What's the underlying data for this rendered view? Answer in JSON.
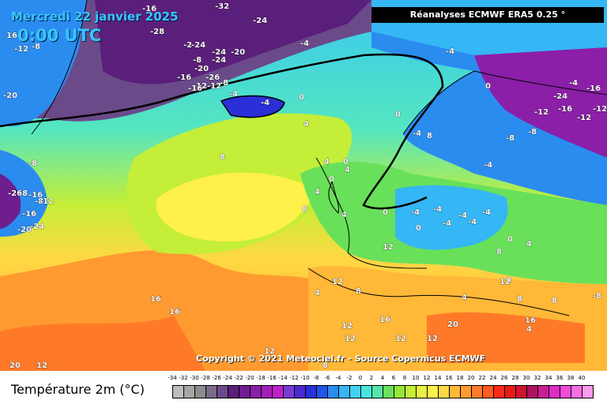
{
  "header": {
    "date_label": "Mercredi 22 janvier 2025",
    "time_label": "0:00 UTC"
  },
  "source_label": "Réanalyses ECMWF ERA5 0.25 °",
  "copyright": "Copyright © 2021 Meteociel.fr - Source Copernicus ECMWF",
  "legend": {
    "title": "Température 2m (°C)",
    "scale_values": [
      "-34",
      "-32",
      "-30",
      "-28",
      "-26",
      "-24",
      "-22",
      "-20",
      "-18",
      "-16",
      "-14",
      "-12",
      "-10",
      "-8",
      "-6",
      "-4",
      "-2",
      "0",
      "2",
      "4",
      "6",
      "8",
      "10",
      "12",
      "14",
      "16",
      "18",
      "20",
      "22",
      "24",
      "26",
      "28",
      "30",
      "32",
      "34",
      "36",
      "38",
      "40"
    ],
    "scale_colors": [
      "#bdbdbd",
      "#a6a6a6",
      "#8c8c8c",
      "#7a6a8c",
      "#6b4a8a",
      "#5a1f7a",
      "#6e1e8e",
      "#8b1fa8",
      "#a21fb8",
      "#c020c8",
      "#7a3ad6",
      "#4b2bd0",
      "#2a2fd8",
      "#1f55e6",
      "#2b8cf0",
      "#35b6f5",
      "#3ed3f2",
      "#46e6de",
      "#55e6a8",
      "#69e05a",
      "#94e63a",
      "#c4ee38",
      "#e6f040",
      "#fff04a",
      "#ffd844",
      "#ffb838",
      "#ff9a30",
      "#ff7a28",
      "#ff5a20",
      "#ff2a1a",
      "#e81a1a",
      "#cc1430",
      "#b01060",
      "#c81e96",
      "#e12cc2",
      "#f14ad8",
      "#f86ee2",
      "#fc9aec"
    ]
  },
  "isotherm_labels": [
    "-16",
    "-32",
    "-24",
    "-28",
    "16",
    "-12",
    "-8",
    "-2",
    "-24",
    "-4",
    "-24",
    "-20",
    "-8",
    "-24",
    "-20",
    "-16",
    "-26",
    "-12",
    "-8",
    "-16",
    "-12",
    "-4",
    "-4",
    "0",
    "-4",
    "0",
    "-4",
    "8",
    "-8",
    "-4",
    "-16",
    "-24",
    "-12",
    "-16",
    "-12",
    "-12",
    "-4",
    "-8",
    "-8",
    "-8",
    "-12",
    "-16",
    "-20",
    "-16",
    "-26",
    "-24",
    "-20",
    "-8",
    "0",
    "4",
    "8",
    "4",
    "0",
    "4",
    "0",
    "8",
    "4",
    "0",
    "4",
    "-4",
    "-4",
    "-4",
    "-4",
    "-4",
    "0",
    "-4",
    "0",
    "4",
    "12",
    "4",
    "12",
    "8",
    "16",
    "16",
    "12",
    "16",
    "12",
    "12",
    "8",
    "16",
    "12",
    "12",
    "20",
    "20",
    "12",
    "8",
    "4",
    "8",
    "-8",
    "0",
    "8",
    "12",
    "4"
  ]
}
